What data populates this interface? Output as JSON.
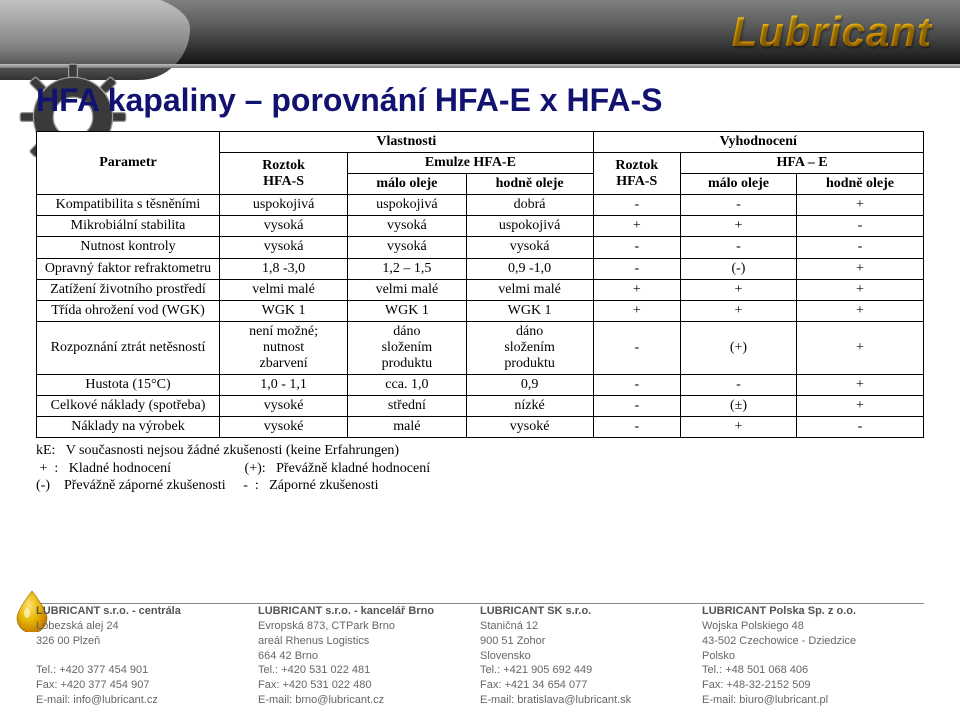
{
  "brand": "Lubricant",
  "title": "HFA kapaliny – porovnání HFA-E  x  HFA-S",
  "table": {
    "header": {
      "parametr": "Parametr",
      "vlastnosti": "Vlastnosti",
      "vyhodnoceni": "Vyhodnocení",
      "roztok_hfas": "Roztok\nHFA-S",
      "emulze_hfae": "Emulze HFA-E",
      "malo_oleje": "málo oleje",
      "hodne_oleje": "hodně oleje",
      "roztok_hfas2": "Roztok\nHFA-S",
      "hfae": "HFA – E"
    },
    "rows": [
      {
        "param": "Kompatibilita s těsněními",
        "c": [
          "uspokojivá",
          "uspokojivá",
          "dobrá",
          "-",
          "-",
          "+"
        ]
      },
      {
        "param": "Mikrobiální stabilita",
        "c": [
          "vysoká",
          "vysoká",
          "uspokojivá",
          "+",
          "+",
          "-"
        ]
      },
      {
        "param": "Nutnost kontroly",
        "c": [
          "vysoká",
          "vysoká",
          "vysoká",
          "-",
          "-",
          "-"
        ]
      },
      {
        "param": "Opravný faktor refraktometru",
        "c": [
          "1,8 -3,0",
          "1,2 – 1,5",
          "0,9 -1,0",
          "-",
          "(-)",
          "+"
        ]
      },
      {
        "param": "Zatížení životního prostředí",
        "c": [
          "velmi malé",
          "velmi malé",
          "velmi malé",
          "+",
          "+",
          "+"
        ]
      },
      {
        "param": "Třída ohrožení vod (WGK)",
        "c": [
          "WGK 1",
          "WGK 1",
          "WGK 1",
          "+",
          "+",
          "+"
        ]
      },
      {
        "param": "Rozpoznání ztrát netěsností",
        "c": [
          "není možné;\nnutnost\nzbarvení",
          "dáno\nsložením\nproduktu",
          "dáno\nsložením\nproduktu",
          "-",
          "(+)",
          "+"
        ]
      },
      {
        "param": "Hustota (15°C)",
        "c": [
          "1,0  - 1,1",
          "cca. 1,0",
          "0,9",
          "-",
          "-",
          "+"
        ]
      },
      {
        "param": "Celkové náklady (spotřeba)",
        "c": [
          "vysoké",
          "střední",
          "nízké",
          "-",
          "(±)",
          "+"
        ]
      },
      {
        "param": "Náklady na výrobek",
        "c": [
          "vysoké",
          "malé",
          "vysoké",
          "-",
          "+",
          "-"
        ]
      }
    ]
  },
  "legend": {
    "l1": "kE:   V současnosti nejsou žádné zkušenosti (keine Erfahrungen)",
    "l2": " +  :   Kladné hodnocení                     (+):   Převážně kladné hodnocení",
    "l3": "(-)    Převážně záporné zkušenosti     -  :   Záporné zkušenosti"
  },
  "footer": {
    "c1": {
      "name": "LUBRICANT s.r.o. - centrála",
      "a1": "Lobezská alej 24",
      "a2": "326 00 Plzeň",
      "t1": "Tel.: +420 377 454 901",
      "t2": "Fax: +420 377 454 907",
      "t3": "E-mail: info@lubricant.cz"
    },
    "c2": {
      "name": "LUBRICANT s.r.o. - kancelář Brno",
      "a1": "Evropská 873, CTPark Brno",
      "a2": "areál Rhenus Logistics",
      "a3": "664 42 Brno",
      "t1": "Tel.: +420 531 022 481",
      "t2": "Fax: +420 531 022 480",
      "t3": "E-mail: brno@lubricant.cz"
    },
    "c3": {
      "name": "LUBRICANT SK s.r.o.",
      "a1": "Staničná 12",
      "a2": "900 51 Zohor",
      "a3": "Slovensko",
      "t1": "Tel.: +421 905 692 449",
      "t2": "Fax: +421 34 654 077",
      "t3": "E-mail: bratislava@lubricant.sk"
    },
    "c4": {
      "name": "LUBRICANT Polska Sp. z o.o.",
      "a1": "Wojska Polskiego 48",
      "a2": "43-502 Czechowice - Dziedzice",
      "a3": "Polsko",
      "t1": "Tel.: +48 501 068 406",
      "t2": "Fax: +48-32-2152 509",
      "t3": "E-mail: biuro@lubricant.pl"
    }
  },
  "colors": {
    "title": "#121270",
    "border": "#000000",
    "footer_text": "#666666",
    "gear_fill": "#3a3a3a",
    "gear_stroke": "#9a9a9a",
    "drop_outer": "#e6b800",
    "drop_inner": "#c87f00"
  }
}
